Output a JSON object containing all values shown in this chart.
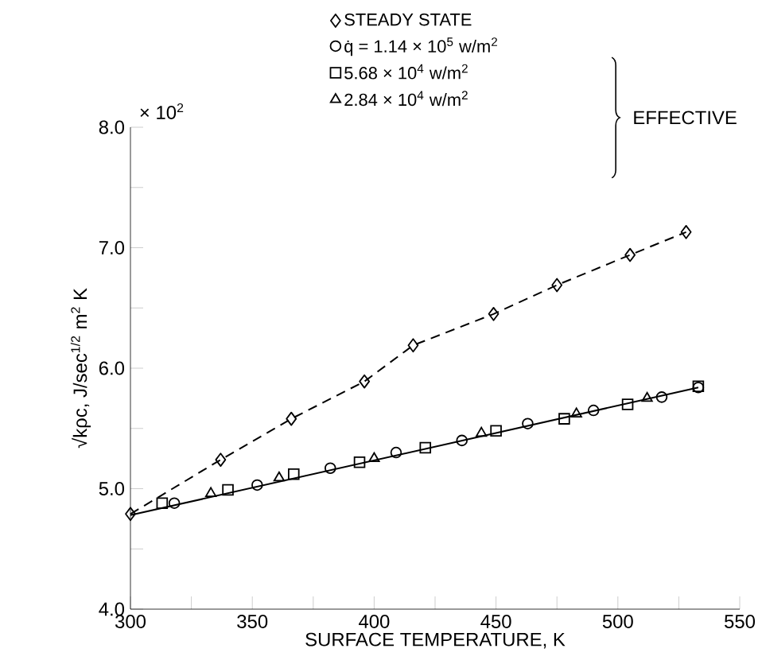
{
  "chart_data": {
    "type": "scatter",
    "xlabel": "SURFACE TEMPERATURE, K",
    "ylabel": "√kρc, J/sec$^{1/2}$ m$^{2}$ K",
    "annotations": [
      "× 10$^{2}$",
      "EFFECTIVE"
    ],
    "xlim": [
      300,
      550
    ],
    "ylim": [
      4,
      8
    ],
    "xticks": [
      300,
      {
        "value": 325,
        "label": null
      },
      350,
      {
        "value": 375,
        "label": null
      },
      400,
      {
        "value": 425,
        "label": null
      },
      450,
      {
        "value": 475,
        "label": null
      },
      500,
      {
        "value": 525,
        "label": null
      },
      550
    ],
    "yticks": [
      {
        "value": 4,
        "label": "4.0"
      },
      {
        "value": 4.5,
        "label": null
      },
      {
        "value": 5,
        "label": "5.0"
      },
      {
        "value": 5.5,
        "label": null
      },
      {
        "value": 6,
        "label": "6.0"
      },
      {
        "value": 6.5,
        "label": null
      },
      {
        "value": 7,
        "label": "7.0"
      },
      {
        "value": 7.5,
        "label": null
      },
      {
        "value": 8,
        "label": "8.0"
      }
    ],
    "legend": "top",
    "series": [
      {
        "name": "STEADY STATE",
        "type": "line",
        "line_style": "dashed",
        "marker": "diamond",
        "color": "#000000",
        "x": [
          300,
          337,
          366,
          396,
          416,
          449,
          475,
          505,
          528
        ],
        "values": [
          4.79,
          5.24,
          5.58,
          5.89,
          6.19,
          6.45,
          6.69,
          6.94,
          7.13
        ]
      },
      {
        "name": "q̇ = 1.14 × 10$^{5}$ w/m$^{2}$",
        "type": "scatter",
        "marker": "circle",
        "color": "#000000",
        "x": [
          318,
          352,
          382,
          409,
          436,
          463,
          490,
          518,
          533
        ],
        "values": [
          4.88,
          5.03,
          5.17,
          5.3,
          5.4,
          5.54,
          5.65,
          5.76,
          5.84
        ]
      },
      {
        "name": "5.68 × 10$^{4}$ w/m$^{2}$",
        "type": "scatter",
        "marker": "square",
        "color": "#000000",
        "x": [
          313,
          340,
          367,
          394,
          421,
          450,
          478,
          504,
          533
        ],
        "values": [
          4.88,
          4.99,
          5.12,
          5.22,
          5.34,
          5.48,
          5.58,
          5.7,
          5.85
        ]
      },
      {
        "name": "2.84 × 10$^{4}$ w/m$^{2}$",
        "type": "scatter",
        "marker": "triangle",
        "color": "#000000",
        "x": [
          333,
          361,
          400,
          444,
          483,
          512
        ],
        "values": [
          4.96,
          5.09,
          5.25,
          5.46,
          5.62,
          5.75
        ]
      },
      {
        "type": "line",
        "line_style": "solid",
        "marker": "none",
        "color": "#000000",
        "x": [
          300,
          533
        ],
        "values": [
          4.78,
          5.84
        ]
      }
    ]
  }
}
